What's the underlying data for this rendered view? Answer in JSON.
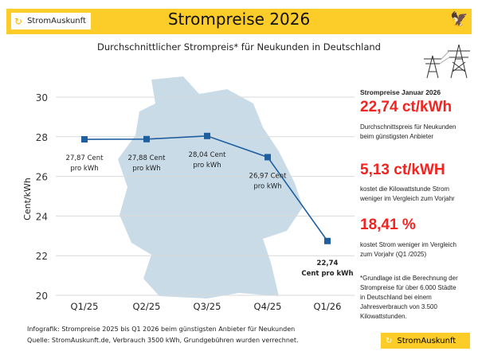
{
  "header": {
    "brand": "StromAuskunft",
    "title": "Strompreise 2026",
    "subtitle": "Durchschnittlicher Strompreis* für Neukunden in Deutschland"
  },
  "chart_data": {
    "type": "line",
    "categories": [
      "Q1/25",
      "Q2/25",
      "Q3/25",
      "Q4/25",
      "Q1/26"
    ],
    "values": [
      27.87,
      27.88,
      28.04,
      26.97,
      22.74
    ],
    "data_labels": [
      [
        "27,87 Cent",
        "pro kWh"
      ],
      [
        "27,88 Cent",
        "pro kWh"
      ],
      [
        "28,04 Cent",
        "pro kWh"
      ],
      [
        "26,97 Cent",
        "pro kWh"
      ],
      [
        "22,74",
        "Cent pro kWh"
      ]
    ],
    "ylabel": "Cent/kWh",
    "xlabel": "",
    "ylim": [
      20,
      30
    ],
    "yticks": [
      20,
      22,
      24,
      26,
      28,
      30
    ],
    "grid": true,
    "color": "#1f5fa0",
    "background": "germany-map"
  },
  "side": {
    "heading": "Strompreise Januar 2026",
    "value1": "22,74 ct/kWh",
    "text1a": "Durchschnittspreis für Neukunden",
    "text1b": "beim günstigsten Anbieter",
    "value2": "5,13 ct/kWH",
    "text2a": "kostet die Kilowattstunde Strom",
    "text2b": "weniger im Vergleich zum Vorjahr",
    "value3": "18,41 %",
    "text3a": "kostet Strom weniger im Vergleich",
    "text3b": "zum Vorjahr (Q1 /2025)",
    "note": [
      "*Grundlage ist die Berechnung der",
      "Strompreise für über 6.000 Städte",
      "in Deutschland bei einem",
      "Jahresverbrauch von 3.500",
      "Kilowattstunden."
    ],
    "accent": "#f4231f"
  },
  "footer": {
    "line1": "Infografik: Strompreise 2025 bis Q1 2026 beim günstigsten Anbieter für Neukunden",
    "line2": "Quelle: StromAuskunft.de, Verbrauch 3500 kWh, Grundgebühren wurden verrechnet.",
    "brand": "StromAuskunft"
  }
}
